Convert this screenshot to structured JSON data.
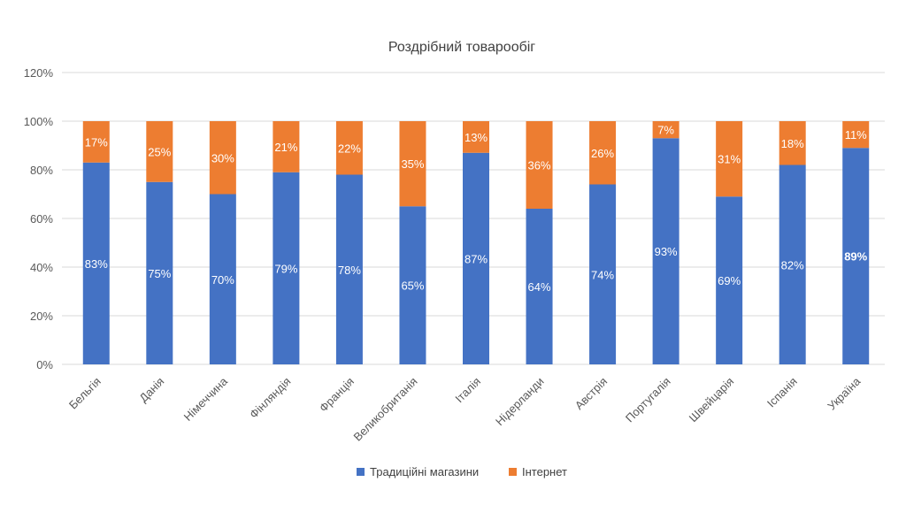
{
  "chart_data": {
    "type": "bar",
    "stacked": true,
    "title": "Роздрібний товарообіг",
    "categories": [
      "Бельгія",
      "Данія",
      "Німеччина",
      "Фінляндія",
      "Франція",
      "Великобританія",
      "Італія",
      "Нідерланди",
      "Австрія",
      "Португалія",
      "Швейцарія",
      "Іспанія",
      "Україна"
    ],
    "series": [
      {
        "name": "Традиційні магазини",
        "color": "#4472c4",
        "values": [
          83,
          75,
          70,
          79,
          78,
          65,
          87,
          64,
          74,
          93,
          69,
          82,
          89
        ],
        "labels": [
          "83%",
          "75%",
          "70%",
          "79%",
          "78%",
          "65%",
          "87%",
          "64%",
          "74%",
          "93%",
          "69%",
          "82%",
          "89%"
        ]
      },
      {
        "name": "Інтернет",
        "color": "#ed7d31",
        "values": [
          17,
          25,
          30,
          21,
          22,
          35,
          13,
          36,
          26,
          7,
          31,
          18,
          11
        ],
        "labels": [
          "17%",
          "25%",
          "30%",
          "21%",
          "22%",
          "35%",
          "13%",
          "36%",
          "26%",
          "7%",
          "31%",
          "18%",
          "11%"
        ]
      }
    ],
    "ylim": [
      0,
      120
    ],
    "yticks": [
      "0%",
      "20%",
      "40%",
      "60%",
      "80%",
      "100%",
      "120%"
    ],
    "grid": true,
    "legend_position": "bottom",
    "xlabel": "",
    "ylabel": ""
  }
}
